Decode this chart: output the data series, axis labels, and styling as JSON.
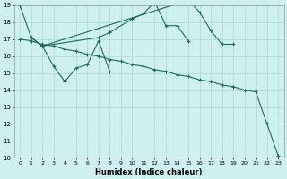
{
  "xlabel": "Humidex (Indice chaleur)",
  "bg_color": "#cff0f0",
  "grid_color": "#aad8d4",
  "line_color": "#1a6b5e",
  "ylim": [
    10,
    19
  ],
  "xlim": [
    -0.5,
    23.5
  ],
  "line1_x": [
    0,
    1,
    2,
    3,
    4,
    5,
    6,
    7,
    8
  ],
  "line1_y": [
    19.0,
    17.1,
    16.6,
    15.4,
    14.5,
    15.3,
    15.5,
    16.9,
    15.1
  ],
  "line2_x": [
    1,
    2,
    7,
    8,
    10,
    11,
    12,
    13,
    14,
    15
  ],
  "line2_y": [
    17.1,
    16.6,
    17.1,
    17.4,
    18.2,
    18.5,
    19.2,
    17.8,
    17.8,
    16.9
  ],
  "line3_x": [
    2,
    15,
    16,
    17,
    18,
    19
  ],
  "line3_y": [
    16.6,
    19.3,
    18.6,
    17.5,
    16.7,
    16.7
  ],
  "line4_x": [
    0,
    1,
    2,
    3,
    4,
    5,
    6,
    7,
    8,
    9,
    10,
    11,
    12,
    13,
    14,
    15,
    16,
    17,
    18,
    19,
    20,
    21,
    22,
    23
  ],
  "line4_y": [
    17.0,
    16.9,
    16.7,
    16.6,
    16.4,
    16.3,
    16.1,
    16.0,
    15.8,
    15.7,
    15.5,
    15.4,
    15.2,
    15.1,
    14.9,
    14.8,
    14.6,
    14.5,
    14.3,
    14.2,
    14.0,
    13.9,
    12.0,
    10.1
  ],
  "yticks": [
    10,
    11,
    12,
    13,
    14,
    15,
    16,
    17,
    18,
    19
  ],
  "xticks": [
    0,
    1,
    2,
    3,
    4,
    5,
    6,
    7,
    8,
    9,
    10,
    11,
    12,
    13,
    14,
    15,
    16,
    17,
    18,
    19,
    20,
    21,
    22,
    23
  ]
}
